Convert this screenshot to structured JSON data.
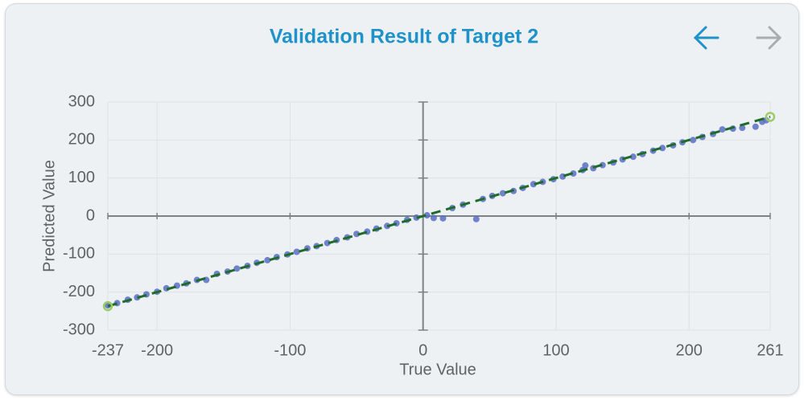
{
  "chart_data": {
    "type": "scatter",
    "title": "Validation Result of Target 2",
    "x_label": "True Value",
    "y_label": "Predicted Value",
    "xlim": [
      -237,
      261
    ],
    "xticks": [
      -237,
      -200,
      -100,
      0,
      100,
      200,
      261
    ],
    "ylim": [
      -300,
      300
    ],
    "yticks": [
      -300,
      -200,
      -100,
      0,
      100,
      200,
      300
    ],
    "grid": true,
    "series": [
      {
        "color": "#5b6fc4",
        "style": "dot",
        "x": [
          -237,
          -230,
          -222,
          -215,
          -208,
          -200,
          -193,
          -185,
          -178,
          -170,
          -163,
          -155,
          -147,
          -140,
          -132,
          -125,
          -117,
          -110,
          -102,
          -95,
          -87,
          -80,
          -72,
          -65,
          -57,
          -50,
          -42,
          -35,
          -27,
          -20,
          -12,
          -5,
          3,
          8,
          15,
          22,
          30,
          40,
          45,
          52,
          60,
          68,
          75,
          83,
          90,
          98,
          105,
          113,
          120,
          122,
          128,
          135,
          143,
          150,
          158,
          165,
          173,
          180,
          188,
          195,
          203,
          210,
          218,
          225,
          233,
          240,
          250,
          255,
          258
        ],
        "values": [
          -235,
          -229,
          -220,
          -214,
          -206,
          -199,
          -190,
          -183,
          -177,
          -168,
          -168,
          -152,
          -146,
          -138,
          -131,
          -123,
          -116,
          -108,
          -101,
          -94,
          -85,
          -79,
          -71,
          -63,
          -56,
          -47,
          -41,
          -33,
          -26,
          -19,
          -10,
          -4,
          2,
          -5,
          -6,
          21,
          30,
          -8,
          45,
          53,
          60,
          66,
          74,
          84,
          90,
          97,
          104,
          112,
          121,
          133,
          126,
          134,
          141,
          149,
          156,
          163,
          172,
          179,
          186,
          194,
          200,
          208,
          216,
          228,
          230,
          232,
          235,
          248,
          252
        ]
      },
      {
        "color": "#1e6b2a",
        "style": "dashed-line",
        "x": [
          -237,
          261
        ],
        "values": [
          -237,
          261
        ]
      },
      {
        "color": "#9ccc65",
        "style": "ring",
        "x": [
          -237,
          261
        ],
        "values": [
          -237,
          261
        ]
      }
    ]
  }
}
